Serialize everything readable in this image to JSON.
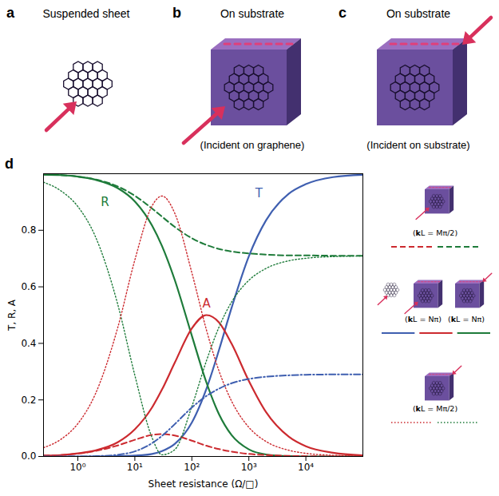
{
  "panels": [
    {
      "letter": "a",
      "title": "Suspended sheet"
    },
    {
      "letter": "b",
      "title": "On substrate",
      "caption": "(Incident on graphene)"
    },
    {
      "letter": "c",
      "title": "On substrate",
      "caption": "(Incident on substrate)"
    }
  ],
  "chart_data": {
    "type": "line",
    "letter": "d",
    "xlabel": "Sheet resistance (Ω/□)",
    "ylabel": "T, R, A",
    "log": "x",
    "xlim": [
      0.25,
      100000
    ],
    "ylim": [
      0,
      1
    ],
    "xticks": [
      {
        "value": 1,
        "label": "10⁰"
      },
      {
        "value": 10,
        "label": "10¹"
      },
      {
        "value": 100,
        "label": "10²"
      },
      {
        "value": 1000,
        "label": "10³"
      },
      {
        "value": 10000,
        "label": "10⁴"
      }
    ],
    "yticks": [
      {
        "value": 0,
        "label": "0.0"
      },
      {
        "value": 0.2,
        "label": "0.2"
      },
      {
        "value": 0.4,
        "label": "0.4"
      },
      {
        "value": 0.6,
        "label": "0.6"
      },
      {
        "value": 0.8,
        "label": "0.8"
      }
    ],
    "x": [
      0.25,
      0.5,
      1,
      2,
      5,
      10,
      20,
      30,
      50,
      100,
      180,
      300,
      500,
      1000,
      2000,
      5000,
      10000,
      30000,
      100000
    ],
    "series": [
      {
        "name": "T",
        "color": "#3f5fb0",
        "line_style": "solid",
        "values": [
          0,
          0,
          0,
          0,
          0.001,
          0.003,
          0.009,
          0.019,
          0.044,
          0.12,
          0.239,
          0.377,
          0.527,
          0.708,
          0.835,
          0.929,
          0.963,
          0.988,
          0.996
        ]
      },
      {
        "name": "R",
        "color": "#1e7b3a",
        "line_style": "solid",
        "values": [
          0.997,
          0.995,
          0.99,
          0.979,
          0.949,
          0.902,
          0.817,
          0.744,
          0.625,
          0.427,
          0.262,
          0.149,
          0.075,
          0.025,
          0.007,
          0.001,
          0,
          0,
          0
        ]
      },
      {
        "name": "A",
        "color": "#cc2a2f",
        "line_style": "solid",
        "values": [
          0.003,
          0.005,
          0.011,
          0.021,
          0.05,
          0.096,
          0.173,
          0.237,
          0.331,
          0.453,
          0.5,
          0.474,
          0.398,
          0.267,
          0.157,
          0.07,
          0.036,
          0.013,
          0.004
        ]
      },
      {
        "name": "R",
        "color": "#1e7b3a",
        "line_style": "dashed",
        "values": [
          0.997,
          0.995,
          0.99,
          0.98,
          0.955,
          0.922,
          0.877,
          0.848,
          0.812,
          0.772,
          0.748,
          0.734,
          0.725,
          0.718,
          0.714,
          0.711,
          0.711,
          0.71,
          0.71
        ]
      },
      {
        "name": "A",
        "color": "#cc2a2f",
        "line_style": "dashed",
        "values": [
          0.003,
          0.005,
          0.01,
          0.019,
          0.039,
          0.059,
          0.076,
          0.079,
          0.074,
          0.056,
          0.038,
          0.026,
          0.017,
          0.009,
          0.005,
          0.002,
          0.001,
          0,
          0
        ]
      },
      {
        "name": "R",
        "color": "#1e7b3a",
        "line_style": "dotted",
        "values": [
          0.97,
          0.94,
          0.884,
          0.781,
          0.539,
          0.287,
          0.067,
          0.006,
          0.024,
          0.177,
          0.338,
          0.458,
          0.547,
          0.623,
          0.665,
          0.692,
          0.701,
          0.707,
          0.709
        ]
      },
      {
        "name": "A",
        "color": "#cc2a2f",
        "line_style": "dotted",
        "values": [
          0.031,
          0.06,
          0.116,
          0.218,
          0.455,
          0.695,
          0.886,
          0.921,
          0.861,
          0.65,
          0.448,
          0.302,
          0.195,
          0.103,
          0.053,
          0.022,
          0.011,
          0.004,
          0.001
        ]
      },
      {
        "name": "T",
        "color": "#3f5fb0",
        "line_style": "dash-dot",
        "values": [
          0,
          0,
          0,
          0.001,
          0.006,
          0.018,
          0.047,
          0.073,
          0.114,
          0.173,
          0.214,
          0.24,
          0.259,
          0.274,
          0.282,
          0.287,
          0.289,
          0.29,
          0.29
        ]
      }
    ],
    "annotations": [
      {
        "text": "R",
        "x": 3,
        "y": 0.9,
        "color": "#1e7b3a"
      },
      {
        "text": "A",
        "x": 180,
        "y": 0.54,
        "color": "#cc2a2f"
      },
      {
        "text": "T",
        "x": 1500,
        "y": 0.93,
        "color": "#3f5fb0"
      }
    ],
    "legend": "right",
    "legend_entries": [
      {
        "labels": [
          "(kL = Mπ/2)"
        ],
        "line_style": "dashed",
        "colors": [
          "#cc2a2f",
          "#1e7b3a"
        ]
      },
      {
        "labels": [
          "(kL = Nπ)",
          "(kL = Nπ)"
        ],
        "line_style": "solid",
        "colors": [
          "#3f5fb0",
          "#cc2a2f",
          "#1e7b3a"
        ]
      },
      {
        "labels": [
          "(kL = Mπ/2)"
        ],
        "line_style": "dotted",
        "colors": [
          "#cc2a2f",
          "#1e7b3a"
        ]
      }
    ]
  }
}
